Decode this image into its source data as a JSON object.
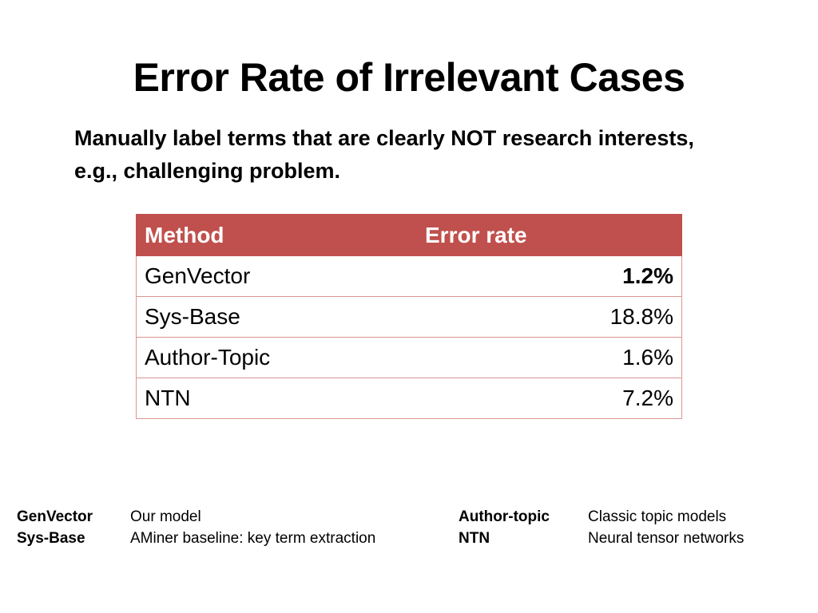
{
  "slide": {
    "title": "Error Rate of Irrelevant Cases",
    "subtitle": "Manually label terms that are clearly NOT research interests, e.g., challenging problem."
  },
  "table": {
    "header_color": "#c0504d",
    "columns": [
      "Method",
      "Error rate"
    ],
    "rows": [
      {
        "method": "GenVector",
        "rate": "1.2%",
        "best": true
      },
      {
        "method": "Sys-Base",
        "rate": "18.8%",
        "best": false
      },
      {
        "method": "Author-Topic",
        "rate": "1.6%",
        "best": false
      },
      {
        "method": "NTN",
        "rate": "7.2%",
        "best": false
      }
    ]
  },
  "legend": {
    "left": [
      {
        "term": "GenVector",
        "desc": "Our model"
      },
      {
        "term": "Sys-Base",
        "desc": "AMiner baseline: key term extraction"
      }
    ],
    "right": [
      {
        "term": "Author-topic",
        "desc": "Classic topic models"
      },
      {
        "term": "NTN",
        "desc": "Neural tensor networks"
      }
    ]
  }
}
